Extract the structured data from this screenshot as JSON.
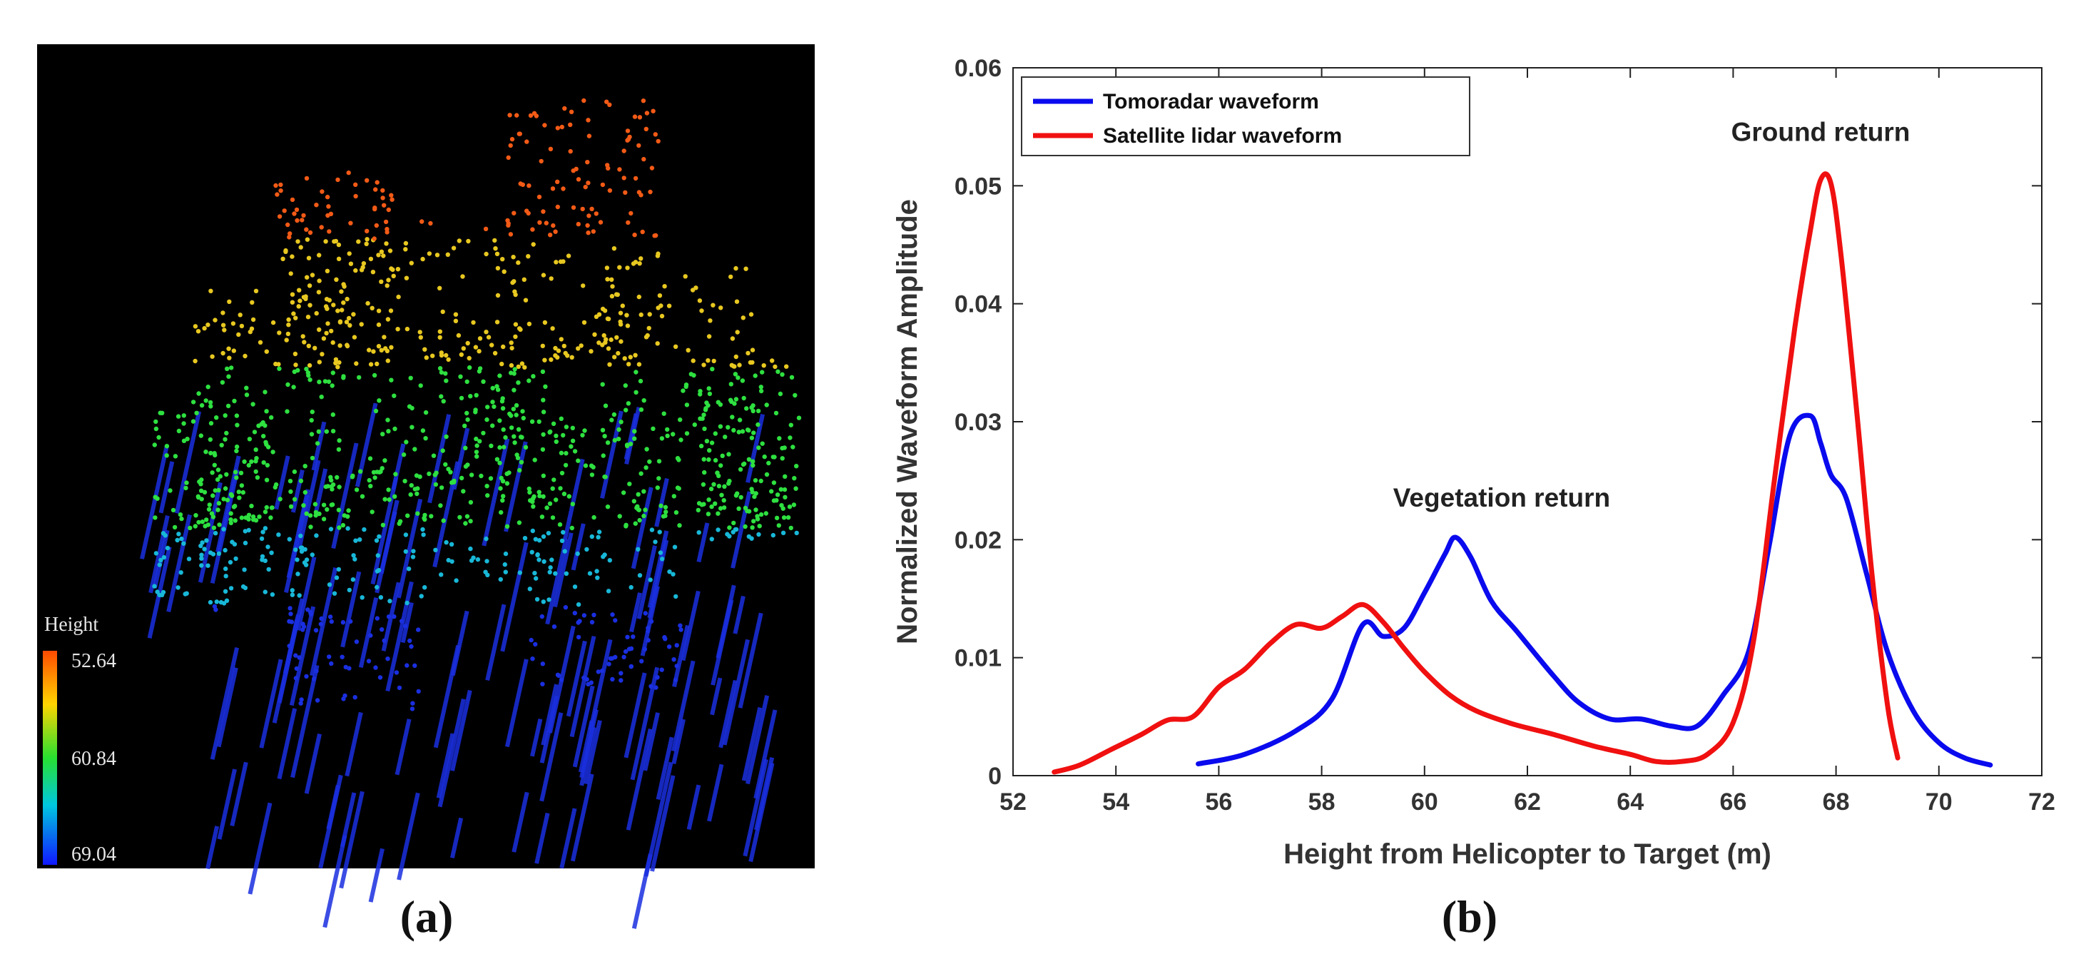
{
  "figure": {
    "panel_a_label": "(a)",
    "panel_b_label": "(b)"
  },
  "point_cloud": {
    "colorbar_title": "Height",
    "colorbar_ticks": [
      "52.64",
      "60.84",
      "69.04"
    ],
    "colors": {
      "background": "#000000",
      "low": "#1a2fe0",
      "mid": "#2ee040",
      "high": "#f25a16"
    }
  },
  "chart_data": {
    "type": "line",
    "title": "",
    "xlabel": "Height from Helicopter to Target (m)",
    "ylabel": "Normalized Waveform Amplitude",
    "xlim": [
      52,
      72
    ],
    "ylim": [
      0,
      0.06
    ],
    "xticks": [
      52,
      54,
      56,
      58,
      60,
      62,
      64,
      66,
      68,
      70,
      72
    ],
    "yticks": [
      0,
      0.01,
      0.02,
      0.03,
      0.04,
      0.05,
      0.06
    ],
    "xtick_labels": [
      "52",
      "54",
      "56",
      "58",
      "60",
      "62",
      "64",
      "66",
      "68",
      "70",
      "72"
    ],
    "ytick_labels": [
      "0",
      "0.01",
      "0.02",
      "0.03",
      "0.04",
      "0.05",
      "0.06"
    ],
    "legend_position": "top-left",
    "annotations": [
      {
        "text": "Vegetation return",
        "x": 61.5,
        "y": 0.0228
      },
      {
        "text": "Ground return",
        "x": 67.7,
        "y": 0.0538
      }
    ],
    "series": [
      {
        "name": "Tomoradar waveform",
        "color": "#0a0aee",
        "x": [
          55.6,
          56.5,
          57.5,
          58.2,
          58.8,
          59.2,
          59.6,
          60.0,
          60.4,
          60.6,
          60.9,
          61.3,
          61.8,
          62.5,
          63.0,
          63.6,
          64.2,
          64.8,
          65.3,
          65.8,
          66.3,
          66.7,
          67.1,
          67.5,
          67.7,
          67.9,
          68.2,
          68.6,
          69.0,
          69.5,
          70.0,
          70.5,
          71.0
        ],
        "y": [
          0.001,
          0.0018,
          0.0038,
          0.0065,
          0.0128,
          0.0118,
          0.0125,
          0.0155,
          0.0188,
          0.0202,
          0.0185,
          0.0148,
          0.0122,
          0.0085,
          0.0062,
          0.0048,
          0.0048,
          0.0042,
          0.0042,
          0.0068,
          0.0105,
          0.0195,
          0.0288,
          0.0305,
          0.0282,
          0.0255,
          0.0235,
          0.017,
          0.0105,
          0.0055,
          0.0028,
          0.0015,
          0.0009
        ]
      },
      {
        "name": "Satellite lidar waveform",
        "color": "#f01010",
        "x": [
          52.8,
          53.3,
          53.9,
          54.5,
          55.0,
          55.5,
          56.0,
          56.5,
          57.0,
          57.5,
          58.0,
          58.4,
          58.8,
          59.2,
          59.6,
          60.0,
          60.5,
          61.0,
          61.7,
          62.5,
          63.3,
          64.0,
          64.5,
          65.0,
          65.5,
          66.0,
          66.4,
          66.8,
          67.2,
          67.5,
          67.7,
          67.9,
          68.1,
          68.4,
          68.7,
          69.0,
          69.2
        ],
        "y": [
          0.0003,
          0.0009,
          0.0022,
          0.0035,
          0.0047,
          0.005,
          0.0075,
          0.009,
          0.0112,
          0.0128,
          0.0125,
          0.0135,
          0.0145,
          0.013,
          0.0108,
          0.0088,
          0.0068,
          0.0055,
          0.0044,
          0.0035,
          0.0025,
          0.0018,
          0.0012,
          0.0012,
          0.0018,
          0.0045,
          0.0115,
          0.025,
          0.038,
          0.0462,
          0.0505,
          0.0502,
          0.044,
          0.031,
          0.017,
          0.006,
          0.0015
        ]
      }
    ]
  }
}
